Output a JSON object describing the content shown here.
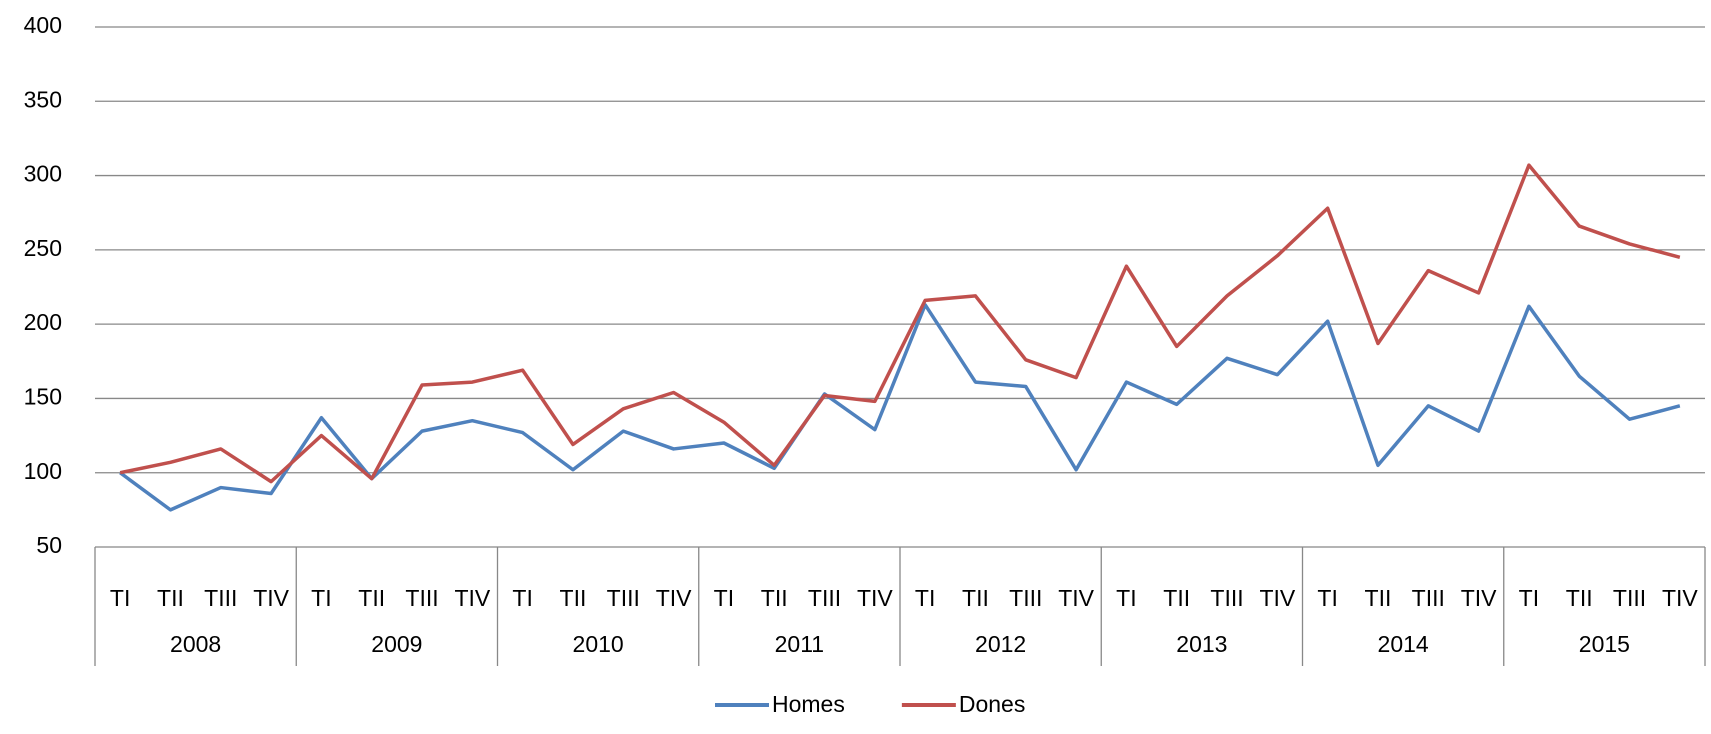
{
  "chart_data": {
    "type": "line",
    "categories": [
      "TI",
      "TII",
      "TIII",
      "TIV",
      "TI",
      "TII",
      "TIII",
      "TIV",
      "TI",
      "TII",
      "TIII",
      "TIV",
      "TI",
      "TII",
      "TIII",
      "TIV",
      "TI",
      "TII",
      "TIII",
      "TIV",
      "TI",
      "TII",
      "TIII",
      "TIV",
      "TI",
      "TII",
      "TIII",
      "TIV",
      "TI",
      "TII",
      "TIII",
      "TIV"
    ],
    "category_groups": [
      "2008",
      "2009",
      "2010",
      "2011",
      "2012",
      "2013",
      "2014",
      "2015"
    ],
    "series": [
      {
        "name": "Homes",
        "color": "#4f81bd",
        "values": [
          100,
          75,
          90,
          86,
          137,
          96,
          128,
          135,
          127,
          102,
          128,
          116,
          120,
          103,
          153,
          129,
          213,
          161,
          158,
          102,
          161,
          146,
          177,
          166,
          202,
          105,
          145,
          128,
          212,
          165,
          136,
          145
        ]
      },
      {
        "name": "Dones",
        "color": "#c0504d",
        "values": [
          100,
          107,
          116,
          94,
          125,
          96,
          159,
          161,
          169,
          119,
          143,
          154,
          134,
          105,
          152,
          148,
          216,
          219,
          176,
          164,
          239,
          185,
          219,
          246,
          278,
          187,
          236,
          221,
          307,
          266,
          254,
          245
        ]
      }
    ],
    "ylim": [
      50,
      400
    ],
    "yticks": [
      50,
      100,
      150,
      200,
      250,
      300,
      350,
      400
    ],
    "grid": true,
    "legend": "bottom"
  }
}
